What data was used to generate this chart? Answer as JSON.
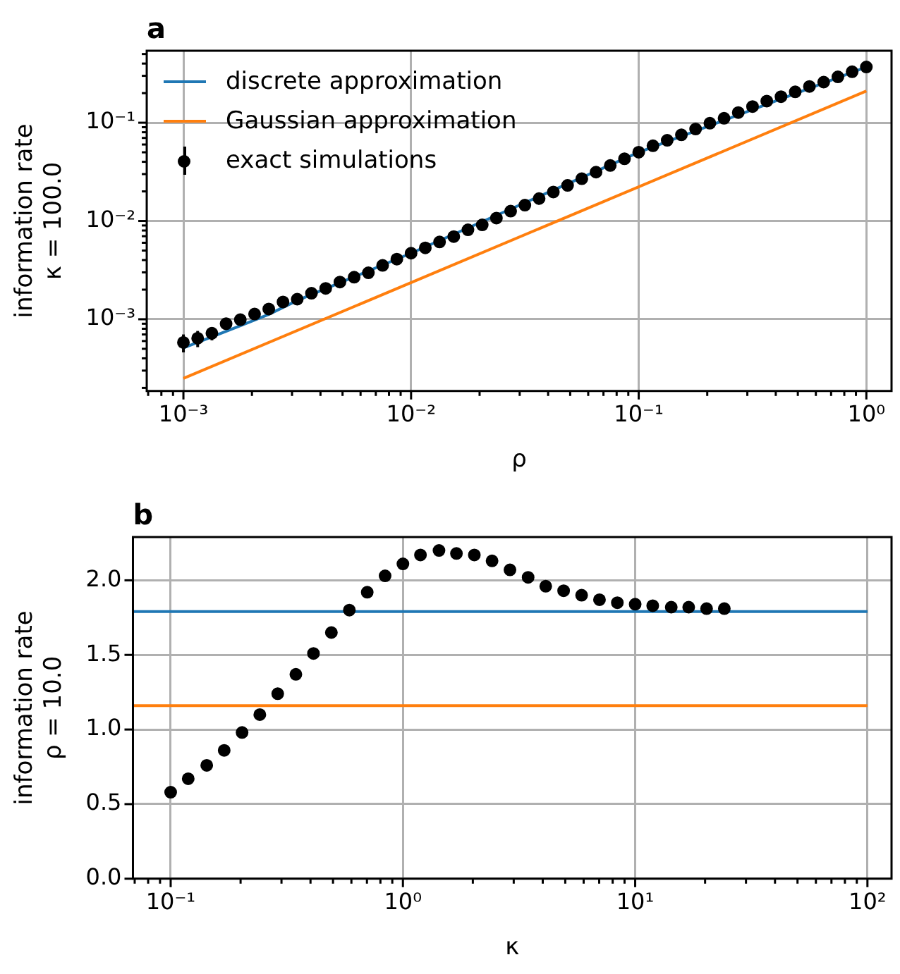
{
  "chart_data": [
    {
      "type": "scatter",
      "title": "a",
      "xlabel": "ρ",
      "ylabel": "information rate\nκ = 100.0",
      "log": "xy",
      "grid": true,
      "legend": "top left",
      "xlim": [
        0.00069,
        1.29
      ],
      "ylim": [
        0.000186,
        0.54
      ],
      "xticks": [
        {
          "value": 0.0007,
          "label": null
        },
        {
          "value": 0.0008,
          "label": null
        },
        {
          "value": 0.0009,
          "label": null
        },
        {
          "value": 0.001,
          "label": "10⁻³"
        },
        {
          "value": 0.002,
          "label": null
        },
        {
          "value": 0.003,
          "label": null
        },
        {
          "value": 0.004,
          "label": null
        },
        {
          "value": 0.005,
          "label": null
        },
        {
          "value": 0.006,
          "label": null
        },
        {
          "value": 0.007,
          "label": null
        },
        {
          "value": 0.008,
          "label": null
        },
        {
          "value": 0.009,
          "label": null
        },
        {
          "value": 0.01,
          "label": "10⁻²"
        },
        {
          "value": 0.02,
          "label": null
        },
        {
          "value": 0.03,
          "label": null
        },
        {
          "value": 0.04,
          "label": null
        },
        {
          "value": 0.05,
          "label": null
        },
        {
          "value": 0.06,
          "label": null
        },
        {
          "value": 0.07,
          "label": null
        },
        {
          "value": 0.08,
          "label": null
        },
        {
          "value": 0.09,
          "label": null
        },
        {
          "value": 0.1,
          "label": "10⁻¹"
        },
        {
          "value": 0.2,
          "label": null
        },
        {
          "value": 0.3,
          "label": null
        },
        {
          "value": 0.4,
          "label": null
        },
        {
          "value": 0.5,
          "label": null
        },
        {
          "value": 0.6,
          "label": null
        },
        {
          "value": 0.7,
          "label": null
        },
        {
          "value": 0.8,
          "label": null
        },
        {
          "value": 0.9,
          "label": null
        },
        {
          "value": 1,
          "label": "10⁰"
        }
      ],
      "yticks": [
        {
          "value": 0.0002,
          "label": null
        },
        {
          "value": 0.0003,
          "label": null
        },
        {
          "value": 0.0004,
          "label": null
        },
        {
          "value": 0.0005,
          "label": null
        },
        {
          "value": 0.0006,
          "label": null
        },
        {
          "value": 0.0007,
          "label": null
        },
        {
          "value": 0.0008,
          "label": null
        },
        {
          "value": 0.0009,
          "label": null
        },
        {
          "value": 0.001,
          "label": "10⁻³"
        },
        {
          "value": 0.002,
          "label": null
        },
        {
          "value": 0.003,
          "label": null
        },
        {
          "value": 0.004,
          "label": null
        },
        {
          "value": 0.005,
          "label": null
        },
        {
          "value": 0.006,
          "label": null
        },
        {
          "value": 0.007,
          "label": null
        },
        {
          "value": 0.008,
          "label": null
        },
        {
          "value": 0.009,
          "label": null
        },
        {
          "value": 0.01,
          "label": "10⁻²"
        },
        {
          "value": 0.02,
          "label": null
        },
        {
          "value": 0.03,
          "label": null
        },
        {
          "value": 0.04,
          "label": null
        },
        {
          "value": 0.05,
          "label": null
        },
        {
          "value": 0.06,
          "label": null
        },
        {
          "value": 0.07,
          "label": null
        },
        {
          "value": 0.08,
          "label": null
        },
        {
          "value": 0.09,
          "label": null
        },
        {
          "value": 0.1,
          "label": "10⁻¹"
        },
        {
          "value": 0.2,
          "label": null
        },
        {
          "value": 0.3,
          "label": null
        },
        {
          "value": 0.4,
          "label": null
        },
        {
          "value": 0.5,
          "label": null
        }
      ],
      "series": [
        {
          "name": "discrete approximation",
          "type": "line",
          "marker": "none",
          "color": "#1f77b4",
          "x": [
            0.001,
            0.00133,
            0.00178,
            0.00237,
            0.00316,
            0.01,
            0.1,
            1
          ],
          "values": [
            0.00051,
            0.00066,
            0.00086,
            0.00112,
            0.00155,
            0.0047,
            0.05,
            0.369
          ]
        },
        {
          "name": "Gaussian approximation",
          "type": "line",
          "marker": "none",
          "color": "#ff7f0e",
          "x": [
            0.001,
            1
          ],
          "values": [
            0.00025,
            0.21
          ]
        },
        {
          "name": "exact simulations",
          "type": "scatter",
          "marker": "circle",
          "color": "#000000",
          "x": [
            0.001,
            0.001155,
            0.001334,
            0.00154,
            0.001778,
            0.002054,
            0.002371,
            0.002738,
            0.003162,
            0.003652,
            0.004217,
            0.00487,
            0.005623,
            0.006494,
            0.007499,
            0.00866,
            0.01,
            0.01155,
            0.01334,
            0.0154,
            0.01778,
            0.02054,
            0.02371,
            0.02738,
            0.03162,
            0.03652,
            0.04217,
            0.0487,
            0.05623,
            0.06494,
            0.07499,
            0.0866,
            0.1,
            0.1155,
            0.1334,
            0.154,
            0.1778,
            0.2054,
            0.2371,
            0.2738,
            0.3162,
            0.3652,
            0.4217,
            0.487,
            0.5623,
            0.6494,
            0.7499,
            0.866,
            1
          ],
          "values": [
            0.00058,
            0.00064,
            0.00072,
            0.0009,
            0.00099,
            0.00113,
            0.00127,
            0.0015,
            0.0016,
            0.00184,
            0.00206,
            0.00239,
            0.00268,
            0.00297,
            0.00353,
            0.00409,
            0.0047,
            0.00533,
            0.00611,
            0.00693,
            0.00813,
            0.00912,
            0.0107,
            0.0126,
            0.0145,
            0.0169,
            0.0197,
            0.023,
            0.0269,
            0.0314,
            0.0367,
            0.0429,
            0.0501,
            0.0583,
            0.0662,
            0.0752,
            0.0863,
            0.0989,
            0.111,
            0.127,
            0.146,
            0.166,
            0.184,
            0.206,
            0.234,
            0.259,
            0.293,
            0.33,
            0.369
          ],
          "errors": [
            0.00012,
            0.00012,
            0.00011,
            8e-05,
            null,
            null,
            null,
            null,
            null,
            null,
            null,
            null,
            null,
            null,
            null,
            null,
            null,
            null,
            null,
            null,
            null,
            null,
            null,
            null,
            null,
            null,
            null,
            null,
            null,
            null,
            null,
            null,
            null,
            null,
            null,
            null,
            null,
            null,
            null,
            null,
            null,
            null,
            null,
            null,
            null,
            null,
            null,
            null,
            null
          ]
        }
      ]
    },
    {
      "type": "scatter",
      "title": "b",
      "xlabel": "κ",
      "ylabel": "information rate\nρ = 10.0",
      "log": "x",
      "grid": true,
      "xlim": [
        0.0688,
        127
      ],
      "ylim": [
        0,
        2.29
      ],
      "xticks": [
        {
          "value": 0.07,
          "label": null
        },
        {
          "value": 0.08,
          "label": null
        },
        {
          "value": 0.09,
          "label": null
        },
        {
          "value": 0.1,
          "label": "10⁻¹"
        },
        {
          "value": 0.2,
          "label": null
        },
        {
          "value": 0.3,
          "label": null
        },
        {
          "value": 0.4,
          "label": null
        },
        {
          "value": 0.5,
          "label": null
        },
        {
          "value": 0.6,
          "label": null
        },
        {
          "value": 0.7,
          "label": null
        },
        {
          "value": 0.8,
          "label": null
        },
        {
          "value": 0.9,
          "label": null
        },
        {
          "value": 1,
          "label": "10⁰"
        },
        {
          "value": 2,
          "label": null
        },
        {
          "value": 3,
          "label": null
        },
        {
          "value": 4,
          "label": null
        },
        {
          "value": 5,
          "label": null
        },
        {
          "value": 6,
          "label": null
        },
        {
          "value": 7,
          "label": null
        },
        {
          "value": 8,
          "label": null
        },
        {
          "value": 9,
          "label": null
        },
        {
          "value": 10,
          "label": "10¹"
        },
        {
          "value": 20,
          "label": null
        },
        {
          "value": 30,
          "label": null
        },
        {
          "value": 40,
          "label": null
        },
        {
          "value": 50,
          "label": null
        },
        {
          "value": 60,
          "label": null
        },
        {
          "value": 70,
          "label": null
        },
        {
          "value": 80,
          "label": null
        },
        {
          "value": 90,
          "label": null
        },
        {
          "value": 100,
          "label": "10²"
        }
      ],
      "yticks": [
        {
          "value": 0,
          "label": "0.0"
        },
        {
          "value": 0.5,
          "label": "0.5"
        },
        {
          "value": 1,
          "label": "1.0"
        },
        {
          "value": 1.5,
          "label": "1.5"
        },
        {
          "value": 2,
          "label": "2.0"
        }
      ],
      "series": [
        {
          "type": "line",
          "marker": "none",
          "color": "#1f77b4",
          "x": [
            0.0688,
            100
          ],
          "values": [
            1.79,
            1.79
          ]
        },
        {
          "type": "line",
          "marker": "none",
          "color": "#ff7f0e",
          "x": [
            0.0688,
            100
          ],
          "values": [
            1.16,
            1.16
          ]
        },
        {
          "type": "scatter",
          "marker": "circle",
          "color": "#000000",
          "x": [
            0.1,
            0.119,
            0.143,
            0.17,
            0.203,
            0.242,
            0.289,
            0.346,
            0.412,
            0.492,
            0.588,
            0.702,
            0.838,
            1,
            1.19,
            1.43,
            1.7,
            2.03,
            2.42,
            2.89,
            3.46,
            4.12,
            4.92,
            5.88,
            7.02,
            8.38,
            10,
            11.9,
            14.3,
            17,
            20.3,
            24.2
          ],
          "values": [
            0.58,
            0.67,
            0.76,
            0.86,
            0.98,
            1.1,
            1.24,
            1.37,
            1.51,
            1.65,
            1.8,
            1.92,
            2.03,
            2.11,
            2.17,
            2.2,
            2.18,
            2.17,
            2.13,
            2.07,
            2.02,
            1.96,
            1.93,
            1.9,
            1.87,
            1.85,
            1.84,
            1.83,
            1.82,
            1.82,
            1.81,
            1.81
          ]
        }
      ]
    }
  ]
}
